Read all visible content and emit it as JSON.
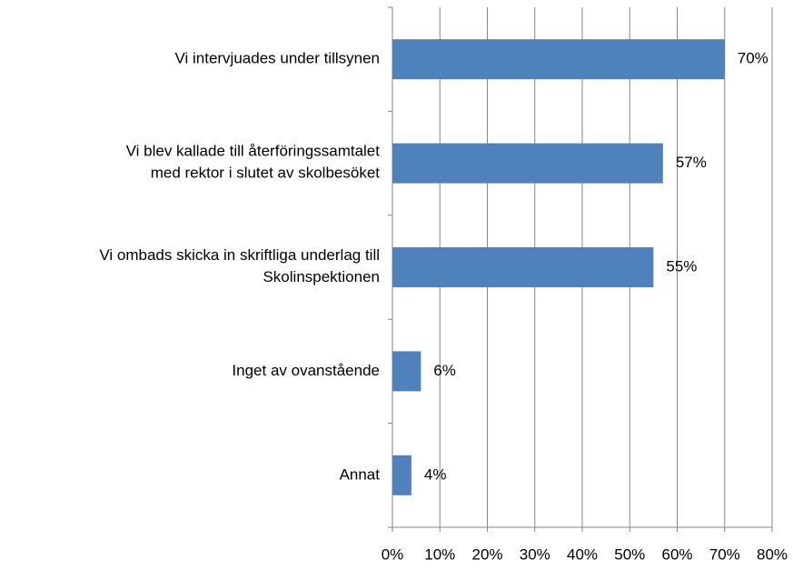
{
  "chart_data": {
    "type": "bar",
    "orientation": "horizontal",
    "categories": [
      "Vi intervjuades under tillsynen",
      "Vi blev kallade till återföringssamtalet\nmed rektor i slutet av skolbesöket",
      "Vi ombads skicka in skriftliga underlag till\nSkolinspektionen",
      "Inget av ovanstående",
      "Annat"
    ],
    "values": [
      70,
      57,
      55,
      6,
      4
    ],
    "value_labels": [
      "70%",
      "57%",
      "55%",
      "6%",
      "4%"
    ],
    "color": "#4f81bd",
    "xlim": [
      0,
      80
    ],
    "xticks": [
      {
        "value": 0,
        "label": "0%"
      },
      {
        "value": 10,
        "label": "10%"
      },
      {
        "value": 20,
        "label": "20%"
      },
      {
        "value": 30,
        "label": "30%"
      },
      {
        "value": 40,
        "label": "40%"
      },
      {
        "value": 50,
        "label": "50%"
      },
      {
        "value": 60,
        "label": "60%"
      },
      {
        "value": 70,
        "label": "70%"
      },
      {
        "value": 80,
        "label": "80%"
      }
    ],
    "grid": true
  }
}
